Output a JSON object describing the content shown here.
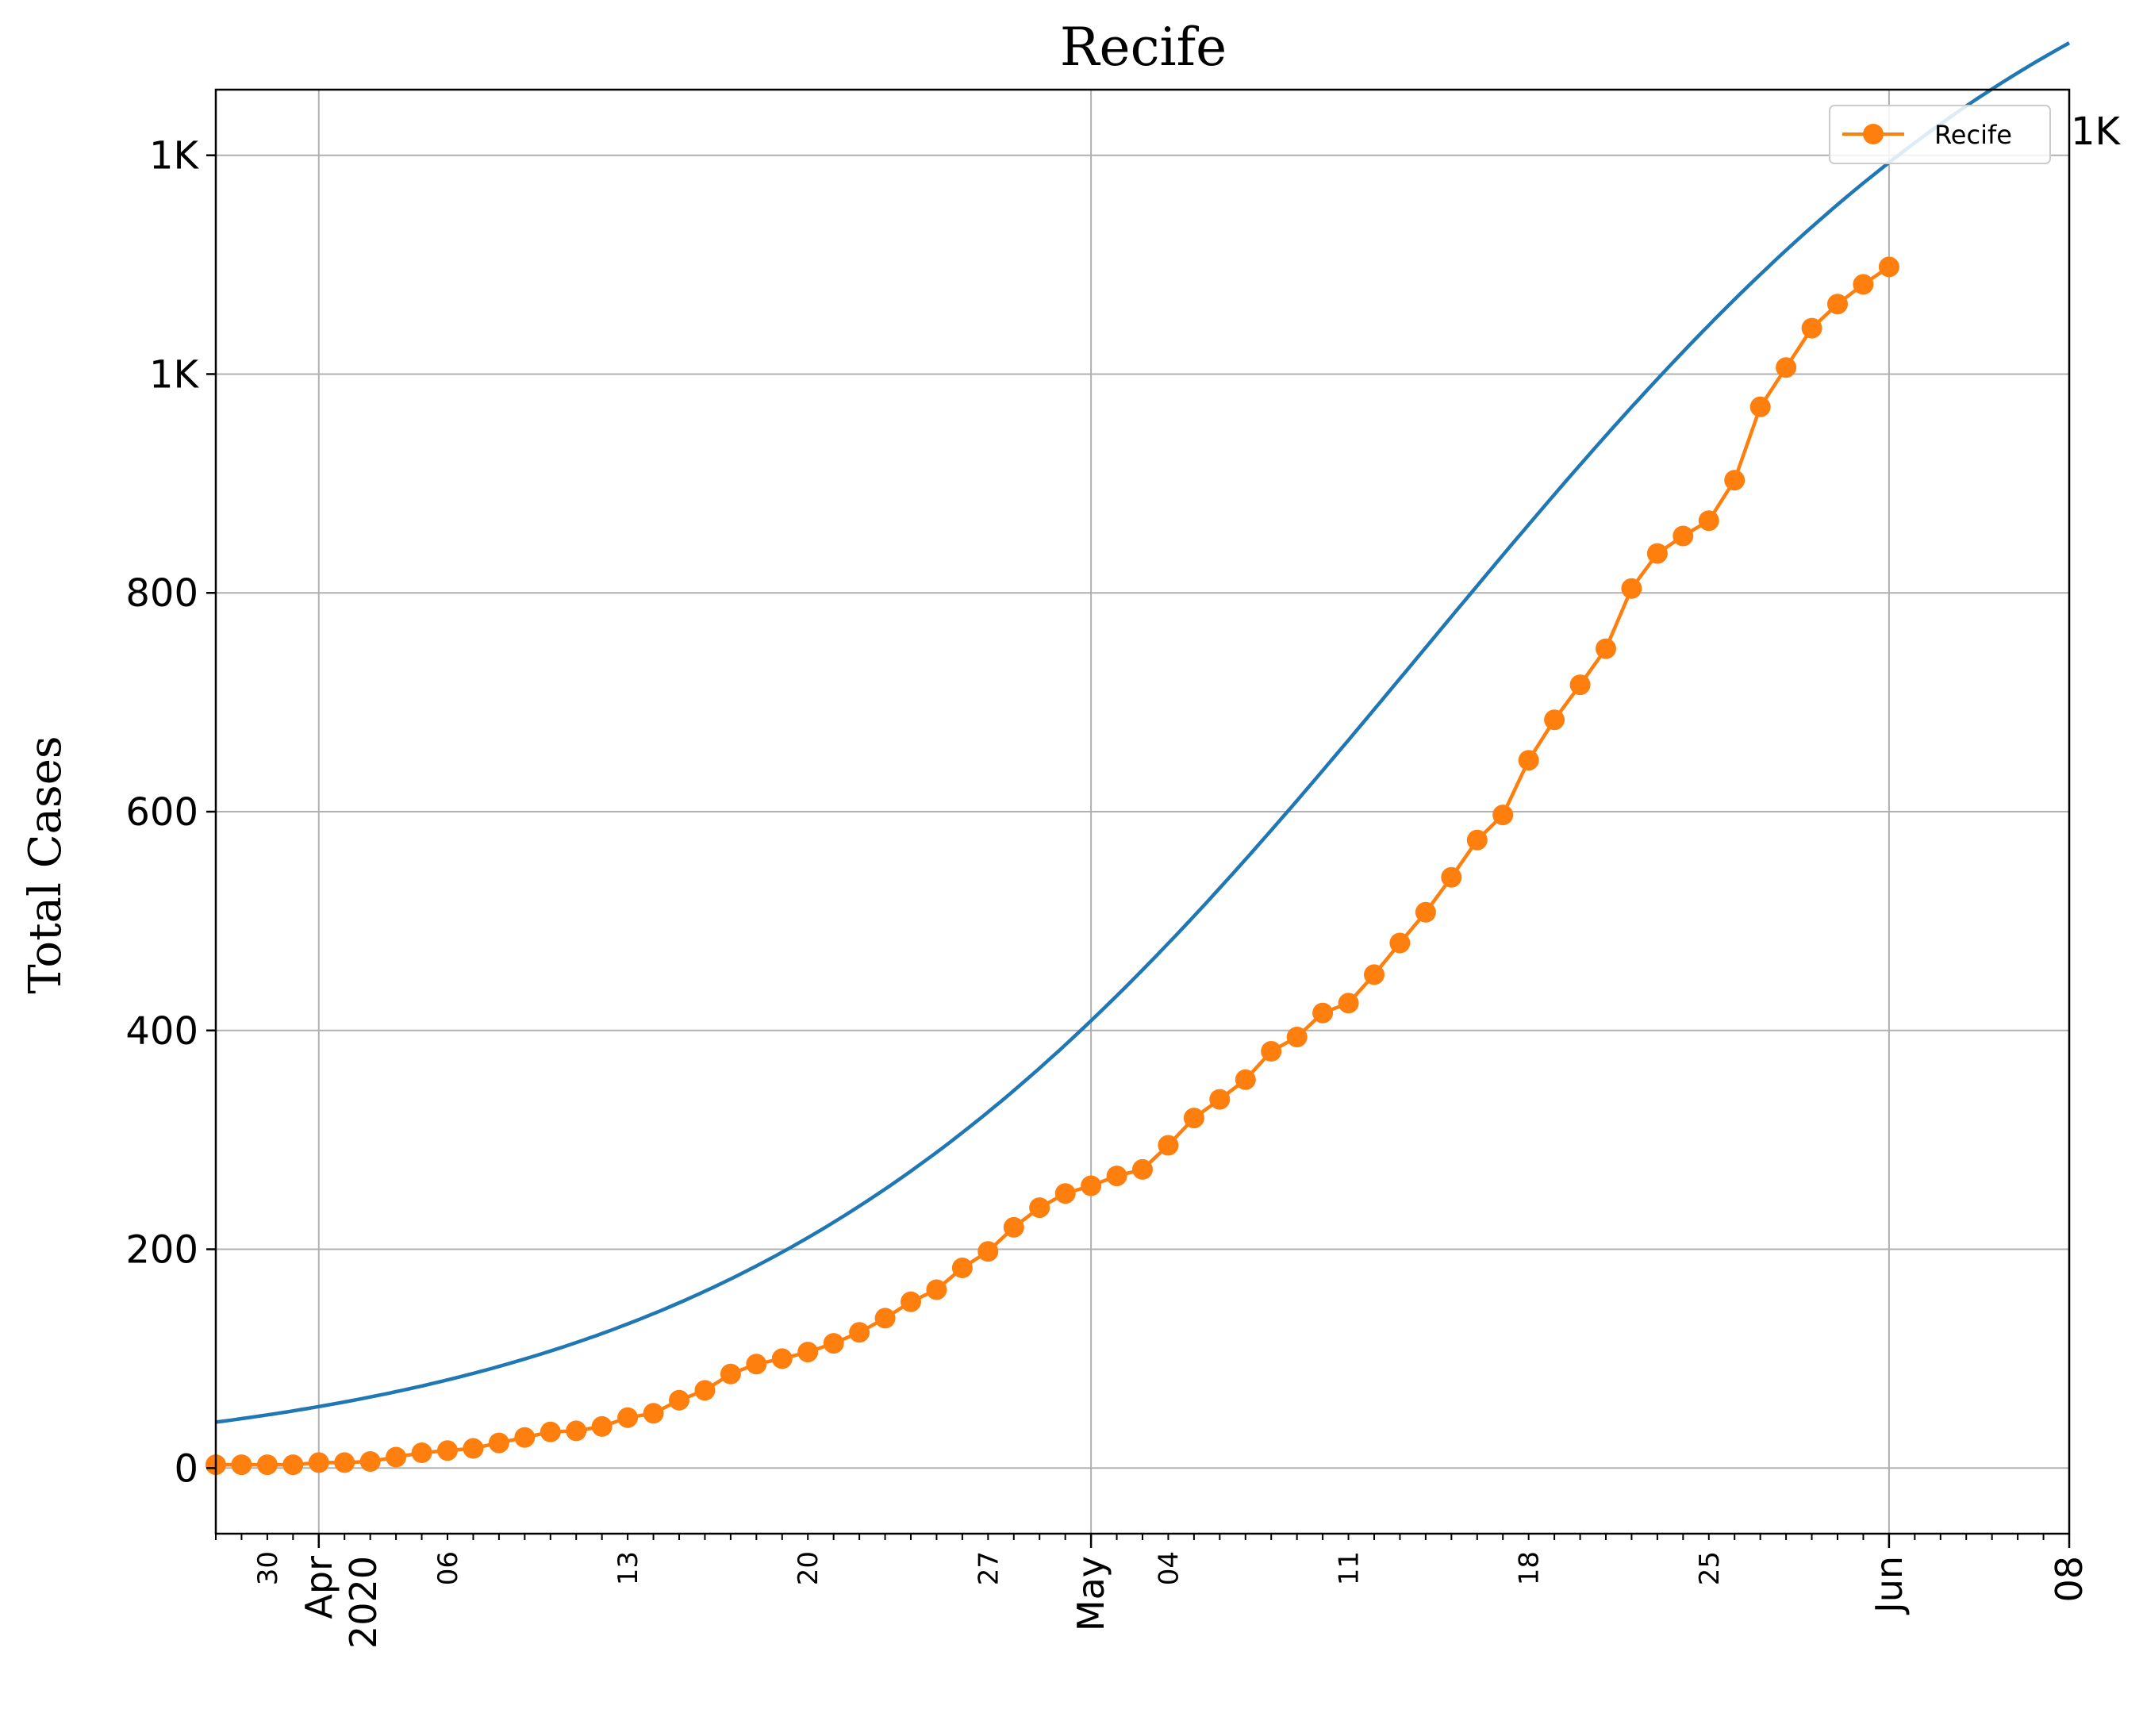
{
  "chart_data": {
    "type": "line",
    "title": "Recife",
    "xlabel": "",
    "ylabel": "Total Cases",
    "xlim": [
      "2020-03-28",
      "2020-06-08"
    ],
    "ylim": [
      -60,
      1260
    ],
    "grid": true,
    "legend": {
      "placement": "top-right",
      "entries": [
        "Recife"
      ]
    },
    "y_ticks": [
      {
        "value": 0,
        "label": "0"
      },
      {
        "value": 200,
        "label": "200"
      },
      {
        "value": 400,
        "label": "400"
      },
      {
        "value": 600,
        "label": "600"
      },
      {
        "value": 800,
        "label": "800"
      },
      {
        "value": 1000,
        "label": "1K"
      },
      {
        "value": 1200,
        "label": "1K"
      }
    ],
    "x_major_ticks": [
      {
        "date": "2020-04-01",
        "label": "Apr\n2020"
      },
      {
        "date": "2020-05-01",
        "label": "May"
      },
      {
        "date": "2020-06-01",
        "label": "Jun"
      },
      {
        "date": "2020-06-08",
        "label": "08"
      }
    ],
    "x_minor_labels": [
      {
        "date": "2020-03-30",
        "label": "30"
      },
      {
        "date": "2020-04-06",
        "label": "06"
      },
      {
        "date": "2020-04-13",
        "label": "13"
      },
      {
        "date": "2020-04-20",
        "label": "20"
      },
      {
        "date": "2020-04-27",
        "label": "27"
      },
      {
        "date": "2020-05-04",
        "label": "04"
      },
      {
        "date": "2020-05-11",
        "label": "11"
      },
      {
        "date": "2020-05-18",
        "label": "18"
      },
      {
        "date": "2020-05-25",
        "label": "25"
      }
    ],
    "end_label": "1K",
    "series": [
      {
        "name": "Recife",
        "kind": "observed",
        "color": "#ff7f0e",
        "marker": "circle",
        "start_date": "2020-03-28",
        "values": [
          3,
          3,
          3,
          3,
          5,
          5,
          6,
          10,
          14,
          16,
          18,
          23,
          28,
          33,
          34,
          38,
          46,
          50,
          62,
          71,
          86,
          95,
          100,
          106,
          114,
          124,
          137,
          152,
          163,
          183,
          198,
          220,
          238,
          251,
          258,
          267,
          273,
          295,
          320,
          337,
          355,
          381,
          394,
          416,
          425,
          451,
          480,
          508,
          540,
          574,
          597,
          647,
          684,
          716,
          749,
          804,
          836,
          852,
          866,
          903,
          970,
          1006,
          1042,
          1064,
          1082,
          1098
        ]
      },
      {
        "kind": "fit",
        "color": "#1f77b4",
        "fit": {
          "L": 1500,
          "k": 0.0755,
          "x0_date": "2020-05-14"
        }
      }
    ]
  },
  "colors": {
    "observed": "#ff7f0e",
    "fit": "#1f77b4",
    "grid": "#b0b0b0",
    "axes": "#000000"
  }
}
